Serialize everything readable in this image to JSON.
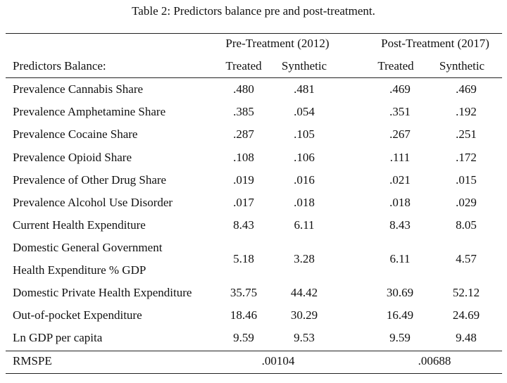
{
  "caption": "Table 2: Predictors balance pre and post-treatment.",
  "header": {
    "pre_group": "Pre-Treatment (2012)",
    "post_group": "Post-Treatment (2017)",
    "row_label": "Predictors Balance:",
    "treated": "Treated",
    "synthetic": "Synthetic"
  },
  "rows": [
    {
      "label": "Prevalence Cannabis Share",
      "pre_t": ".480",
      "pre_s": ".481",
      "post_t": ".469",
      "post_s": ".469"
    },
    {
      "label": "Prevalence Amphetamine Share",
      "pre_t": ".385",
      "pre_s": ".054",
      "post_t": ".351",
      "post_s": ".192"
    },
    {
      "label": "Prevalence Cocaine Share",
      "pre_t": ".287",
      "pre_s": ".105",
      "post_t": ".267",
      "post_s": ".251"
    },
    {
      "label": "Prevalence Opioid Share",
      "pre_t": ".108",
      "pre_s": ".106",
      "post_t": ".111",
      "post_s": ".172"
    },
    {
      "label": "Prevalence of Other Drug Share",
      "pre_t": ".019",
      "pre_s": ".016",
      "post_t": ".021",
      "post_s": ".015"
    },
    {
      "label": "Prevalence Alcohol Use Disorder",
      "pre_t": ".017",
      "pre_s": ".018",
      "post_t": ".018",
      "post_s": ".029"
    },
    {
      "label": "Current Health Expenditure",
      "pre_t": "8.43",
      "pre_s": "6.11",
      "post_t": "8.43",
      "post_s": "8.05"
    },
    {
      "label": "Domestic General Government",
      "label2": "Health Expenditure % GDP",
      "pre_t": "5.18",
      "pre_s": "3.28",
      "post_t": "6.11",
      "post_s": "4.57"
    },
    {
      "label": "Domestic Private Health Expenditure",
      "pre_t": "35.75",
      "pre_s": "44.42",
      "post_t": "30.69",
      "post_s": "52.12"
    },
    {
      "label": "Out-of-pocket Expenditure",
      "pre_t": "18.46",
      "pre_s": "30.29",
      "post_t": "16.49",
      "post_s": "24.69"
    },
    {
      "label": "Ln GDP per capita",
      "pre_t": "9.59",
      "pre_s": "9.53",
      "post_t": "9.59",
      "post_s": "9.48"
    }
  ],
  "rmspe": {
    "label": "RMSPE",
    "pre": ".00104",
    "post": ".00688"
  }
}
